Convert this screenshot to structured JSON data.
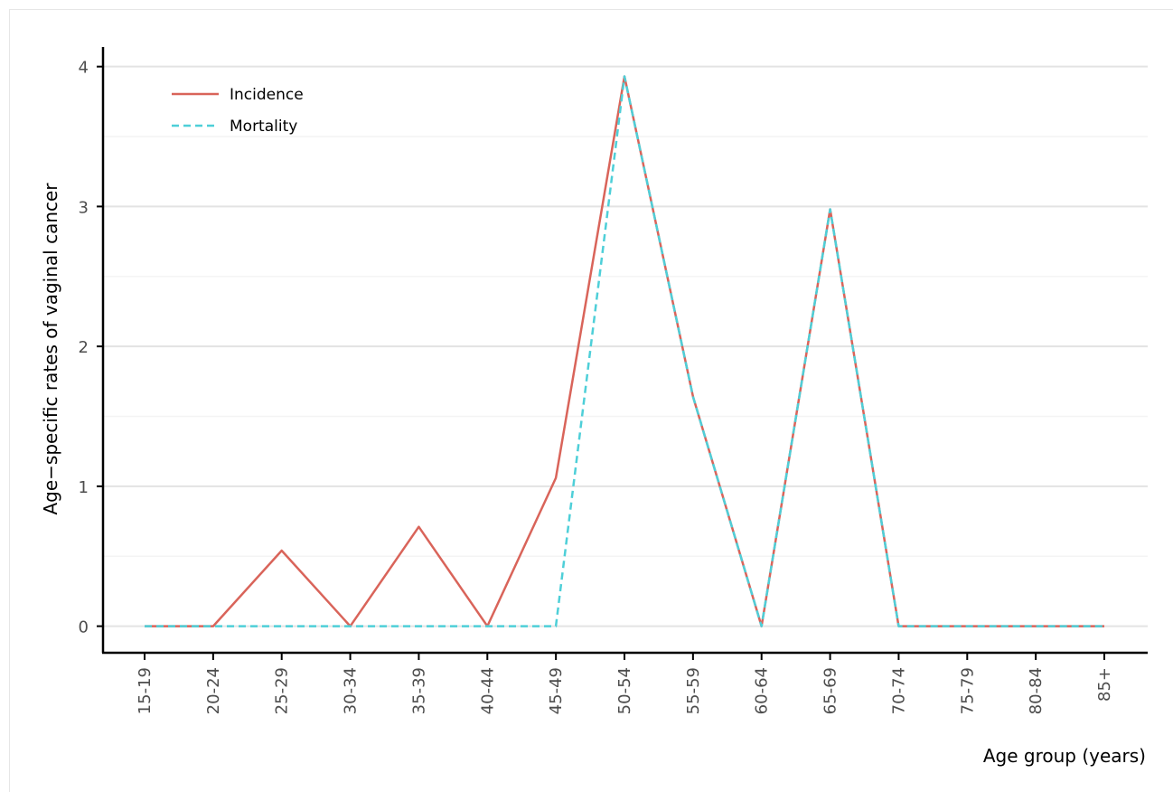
{
  "chart_data": {
    "type": "line",
    "title": "",
    "xlabel": "Age group (years)",
    "ylabel": "Age−specific rates of vaginal cancer",
    "categories": [
      "15-19",
      "20-24",
      "25-29",
      "30-34",
      "35-39",
      "40-44",
      "45-49",
      "50-54",
      "55-59",
      "60-64",
      "65-69",
      "70-74",
      "75-79",
      "80-84",
      "85+"
    ],
    "yticks": [
      "0",
      "1",
      "2",
      "3",
      "4"
    ],
    "ylim": [
      -0.19,
      4.14
    ],
    "grid": true,
    "legend_position": "top-left",
    "series": [
      {
        "name": "Incidence",
        "color": "#d9645a",
        "dash": "solid",
        "values": [
          0,
          0,
          0.54,
          0,
          0.71,
          0,
          1.06,
          3.93,
          1.64,
          0,
          2.98,
          0,
          0,
          0,
          0
        ]
      },
      {
        "name": "Mortality",
        "color": "#4ecfd8",
        "dash": "dashed",
        "values": [
          0,
          0,
          0,
          0,
          0,
          0,
          0,
          3.93,
          1.64,
          0,
          2.98,
          0,
          0,
          0,
          0
        ]
      }
    ]
  }
}
